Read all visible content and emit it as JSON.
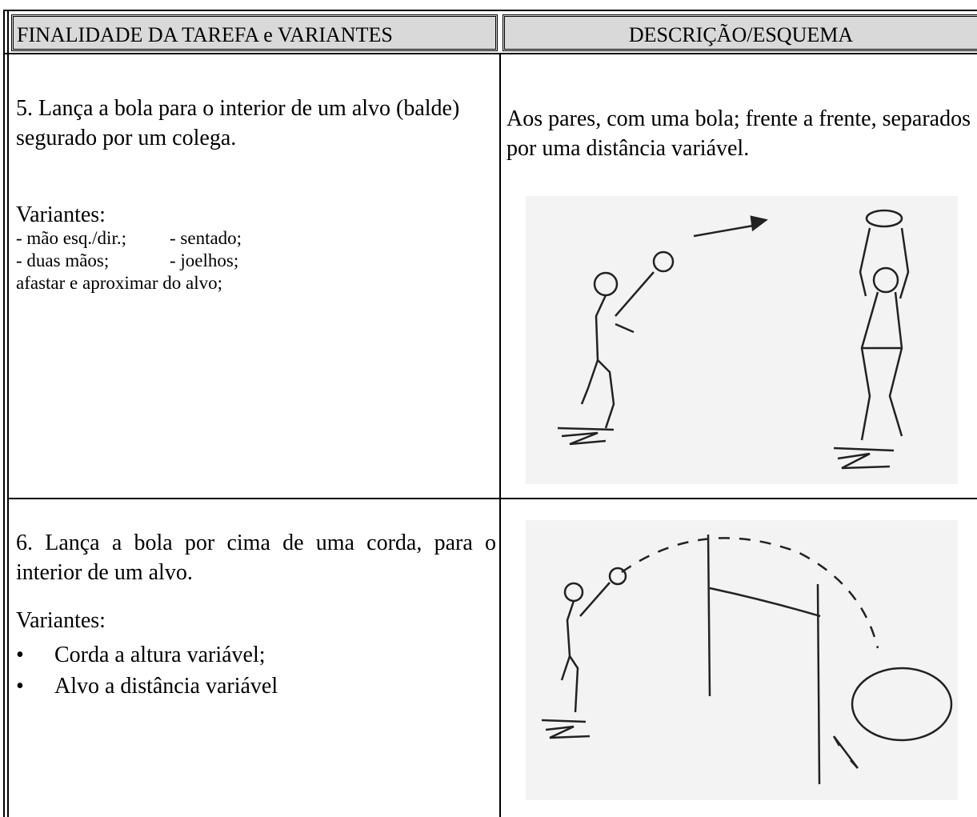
{
  "table": {
    "header": [
      "FINALIDADE DA TAREFA e VARIANTES",
      "DESCRIÇÃO/ESQUEMA"
    ],
    "rows": [
      {
        "task": "5.  Lança a bola para o interior de um alvo (balde) segurado por um colega.",
        "variants_label": "Variantes:",
        "variants": [
          [
            "- mão esq./dir.;",
            "- sentado;"
          ],
          [
            "- duas mãos;",
            "- joelhos;"
          ],
          [
            "afastar e aproximar do alvo;"
          ]
        ],
        "description": "Aos pares, com uma bola; frente a frente, separados por uma distância variável."
      },
      {
        "task": "6. Lança a bola por cima de uma corda, para o interior de um alvo.",
        "variants_label": "Variantes:",
        "variants": [
          [
            "Corda a altura variável;"
          ],
          [
            "Alvo a distância variável"
          ]
        ]
      }
    ]
  }
}
